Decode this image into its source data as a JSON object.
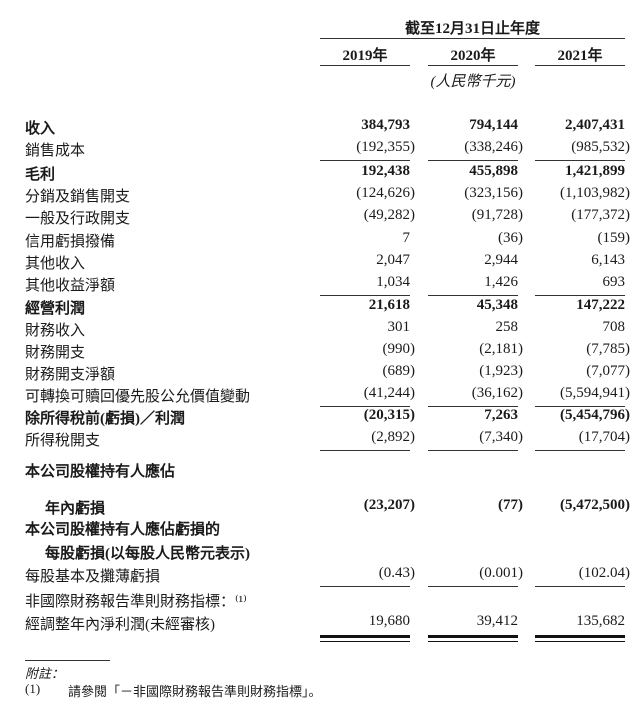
{
  "header": {
    "period": "截至12月31日止年度",
    "years": [
      "2019年",
      "2020年",
      "2021年"
    ],
    "unit": "(人民幣千元)"
  },
  "rows": [
    {
      "label": "收入",
      "values": [
        "384,793",
        "794,144",
        "2,407,431"
      ],
      "bold": true
    },
    {
      "label": "銷售成本",
      "values": [
        "(192,355)",
        "(338,246)",
        "(985,532)"
      ],
      "underline": true
    },
    {
      "label": "毛利",
      "values": [
        "192,438",
        "455,898",
        "1,421,899"
      ],
      "bold": true
    },
    {
      "label": "分銷及銷售開支",
      "values": [
        "(124,626)",
        "(323,156)",
        "(1,103,982)"
      ]
    },
    {
      "label": "一般及行政開支",
      "values": [
        "(49,282)",
        "(91,728)",
        "(177,372)"
      ]
    },
    {
      "label": "信用虧損撥備",
      "values": [
        "7",
        "(36)",
        "(159)"
      ]
    },
    {
      "label": "其他收入",
      "values": [
        "2,047",
        "2,944",
        "6,143"
      ]
    },
    {
      "label": "其他收益淨額",
      "values": [
        "1,034",
        "1,426",
        "693"
      ],
      "underline": true
    },
    {
      "label": "經營利潤",
      "values": [
        "21,618",
        "45,348",
        "147,222"
      ],
      "bold": true
    },
    {
      "label": "財務收入",
      "values": [
        "301",
        "258",
        "708"
      ]
    },
    {
      "label": "財務開支",
      "values": [
        "(990)",
        "(2,181)",
        "(7,785)"
      ]
    },
    {
      "label": "財務開支淨額",
      "values": [
        "(689)",
        "(1,923)",
        "(7,077)"
      ]
    },
    {
      "label": "可轉換可贖回優先股公允價值變動",
      "values": [
        "(41,244)",
        "(36,162)",
        "(5,594,941)"
      ],
      "underline": true
    },
    {
      "label": "除所得稅前(虧損)／利潤",
      "values": [
        "(20,315)",
        "7,263",
        "(5,454,796)"
      ],
      "bold": true
    },
    {
      "label": "所得稅開支",
      "values": [
        "(2,892)",
        "(7,340)",
        "(17,704)"
      ],
      "underline": true
    },
    {
      "label": "本公司股權持有人應佔",
      "values": [],
      "bold": true
    },
    {
      "label": "年內虧損",
      "values": [
        "(23,207)",
        "(77)",
        "(5,472,500)"
      ],
      "bold": true,
      "indent": true
    },
    {
      "label": "本公司股權持有人應佔虧損的",
      "values": [],
      "bold": true
    },
    {
      "label": "每股虧損(以每股人民幣元表示)",
      "values": [],
      "bold": true,
      "indent": true
    },
    {
      "label": "每股基本及攤薄虧損",
      "values": [
        "(0.43)",
        "(0.001)",
        "(102.04)"
      ],
      "underline": true
    },
    {
      "label": "非國際財務報告準則財務指標：⁽¹⁾",
      "values": []
    },
    {
      "label": "經調整年內淨利潤(未經審核)",
      "values": [
        "19,680",
        "39,412",
        "135,682"
      ],
      "double_underline": true
    }
  ],
  "footnote": {
    "heading": "附註：",
    "marker": "(1)",
    "text": "請參閱「－非國際財務報告準則財務指標」。"
  }
}
